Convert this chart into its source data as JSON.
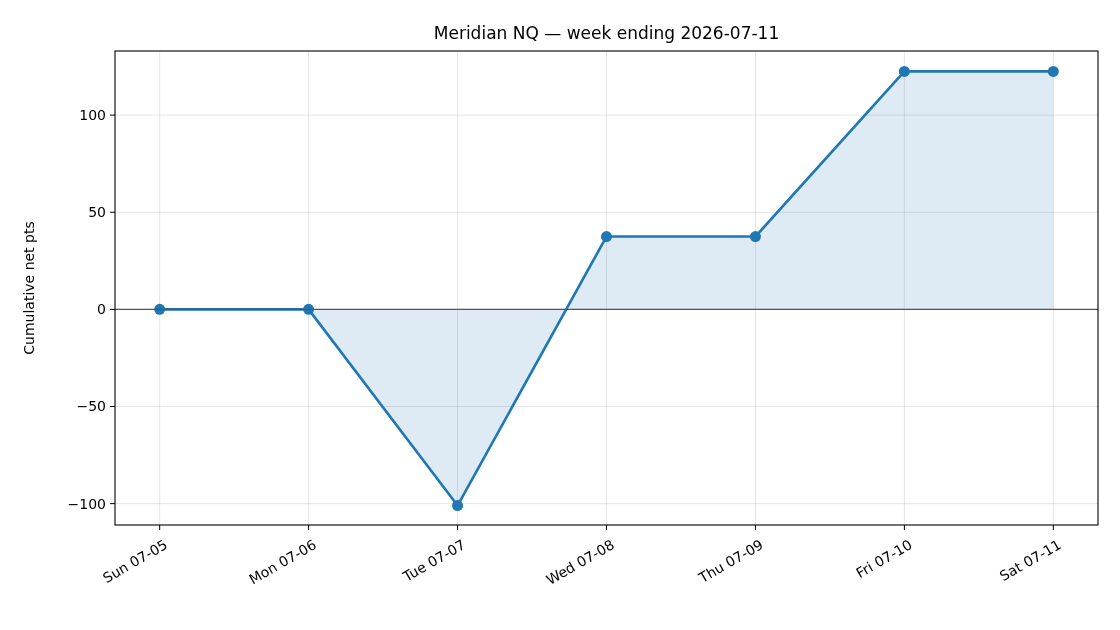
{
  "chart_data": {
    "type": "area",
    "title": "Meridian NQ — week ending 2026-07-11",
    "ylabel": "Cumulative net pts",
    "categories": [
      "Sun 07-05",
      "Mon 07-06",
      "Tue 07-07",
      "Wed 07-08",
      "Thu 07-09",
      "Fri 07-10",
      "Sat 07-11"
    ],
    "series": [
      {
        "color": "#1f77b4",
        "values": [
          0,
          0,
          -101,
          37.5,
          37.5,
          122.5,
          122.5
        ]
      }
    ],
    "ylim": [
      -111,
      133
    ],
    "yticks": [
      -100,
      -50,
      0,
      50,
      100
    ],
    "grid": true,
    "marker": "circle",
    "line_style": "solid",
    "ref_lines": [
      {
        "axis": "y",
        "value": 0,
        "color": "#555555"
      }
    ]
  }
}
